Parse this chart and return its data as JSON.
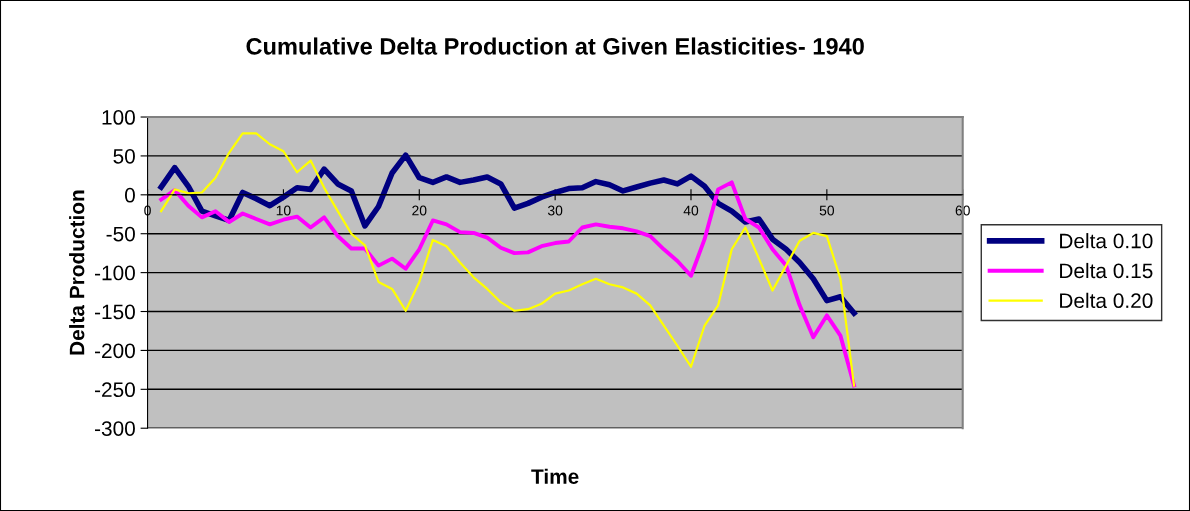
{
  "chart_data": {
    "type": "line",
    "title": "Cumulative Delta Production at Given Elasticities- 1940",
    "xlabel": "Time",
    "ylabel": "Delta Production",
    "x": [
      1,
      2,
      3,
      4,
      5,
      6,
      7,
      8,
      9,
      10,
      11,
      12,
      13,
      14,
      15,
      16,
      17,
      18,
      19,
      20,
      21,
      22,
      23,
      24,
      25,
      26,
      27,
      28,
      29,
      30,
      31,
      32,
      33,
      34,
      35,
      36,
      37,
      38,
      39,
      40,
      41,
      42,
      43,
      44,
      45,
      46,
      47,
      48,
      49,
      50,
      51,
      52
    ],
    "series": [
      {
        "name": "Delta 0.10",
        "color": "#000080",
        "values": [
          10,
          35,
          11,
          -21,
          -27,
          -33,
          3,
          -5,
          -14,
          -3,
          9,
          7,
          33,
          14,
          5,
          -40,
          -15,
          28,
          51,
          22,
          16,
          23,
          16,
          19,
          23,
          14,
          -17,
          -11,
          -3,
          3,
          8,
          9,
          17,
          13,
          5,
          10,
          15,
          19,
          14,
          24,
          11,
          -11,
          -21,
          -35,
          -31,
          -57,
          -70,
          -87,
          -108,
          -136,
          -131,
          -152
        ]
      },
      {
        "name": "Delta 0.15",
        "color": "#ff00ff",
        "values": [
          -6,
          6,
          -14,
          -29,
          -21,
          -35,
          -24,
          -31,
          -38,
          -32,
          -28,
          -42,
          -29,
          -53,
          -69,
          -69,
          -91,
          -82,
          -95,
          -70,
          -33,
          -38,
          -48,
          -49,
          -55,
          -68,
          -75,
          -74,
          -66,
          -62,
          -60,
          -42,
          -38,
          -41,
          -43,
          -47,
          -53,
          -70,
          -85,
          -104,
          -57,
          7,
          16,
          -31,
          -42,
          -70,
          -91,
          -142,
          -183,
          -155,
          -181,
          -245
        ]
      },
      {
        "name": "Delta 0.20",
        "color": "#ffff00",
        "values": [
          -21,
          7,
          2,
          3,
          22,
          54,
          79,
          79,
          65,
          56,
          29,
          44,
          9,
          -21,
          -50,
          -65,
          -112,
          -121,
          -149,
          -112,
          -58,
          -66,
          -87,
          -106,
          -121,
          -138,
          -149,
          -147,
          -140,
          -127,
          -123,
          -115,
          -108,
          -115,
          -119,
          -127,
          -142,
          -168,
          -194,
          -221,
          -168,
          -142,
          -70,
          -42,
          -82,
          -123,
          -91,
          -59,
          -49,
          -53,
          -108,
          -245
        ]
      }
    ],
    "xlim": [
      0,
      60
    ],
    "xticks": [
      0,
      10,
      20,
      30,
      40,
      50,
      60
    ],
    "ylim": [
      -300,
      100
    ],
    "yticks": [
      -300,
      -250,
      -200,
      -150,
      -100,
      -50,
      0,
      50,
      100
    ],
    "grid": "y",
    "legend": "right",
    "marker": "none",
    "line_style": "solid"
  }
}
